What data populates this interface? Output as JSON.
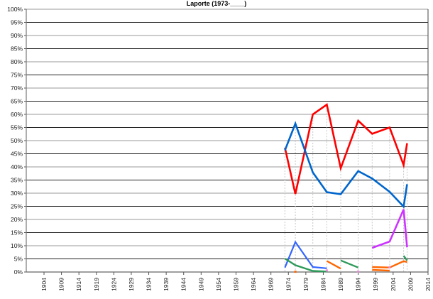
{
  "chart_data": {
    "type": "line",
    "title": "Laporte (1973-____)",
    "xlabel": "",
    "ylabel": "",
    "ylim": [
      0,
      100
    ],
    "xlim": [
      1904,
      2014
    ],
    "grid": true,
    "legend": "none",
    "y_ticks": [
      "0%",
      "5%",
      "10%",
      "15%",
      "20%",
      "25%",
      "30%",
      "35%",
      "40%",
      "45%",
      "50%",
      "55%",
      "60%",
      "65%",
      "70%",
      "75%",
      "80%",
      "85%",
      "90%",
      "95%",
      "100%"
    ],
    "x_ticks": [
      "1904",
      "1909",
      "1914",
      "1919",
      "1924",
      "1929",
      "1934",
      "1939",
      "1944",
      "1949",
      "1954",
      "1959",
      "1964",
      "1969",
      "1974",
      "1979",
      "1984",
      "1989",
      "1994",
      "1999",
      "2004",
      "2009",
      "2014"
    ],
    "election_years": [
      1973,
      1976,
      1981,
      1985,
      1989,
      1994,
      1998,
      2003,
      2007,
      2008
    ],
    "series": [
      {
        "name": "red",
        "color": "#ff0000",
        "width": 2.6,
        "x": [
          1973,
          1976,
          1981,
          1985,
          1989,
          1994,
          1998,
          2003,
          2007,
          2008
        ],
        "values": [
          47.3,
          29.7,
          60.0,
          63.7,
          39.5,
          57.6,
          52.6,
          55.0,
          40.7,
          49.0
        ]
      },
      {
        "name": "blue",
        "color": "#0066cc",
        "width": 2.6,
        "x": [
          1973,
          1976,
          1981,
          1985,
          1989,
          1994,
          1998,
          2003,
          2007,
          2008
        ],
        "values": [
          46.3,
          56.5,
          37.9,
          30.4,
          29.6,
          38.4,
          35.6,
          30.5,
          24.9,
          33.4
        ]
      },
      {
        "name": "light-blue",
        "color": "#3366ff",
        "width": 2.2,
        "x": [
          1973,
          1976,
          1981,
          1985
        ],
        "values": [
          1.7,
          11.4,
          1.9,
          1.4
        ]
      },
      {
        "name": "green-a",
        "color": "#2e9a5a",
        "width": 2.4,
        "x": [
          1973,
          1976,
          1981,
          1985
        ],
        "values": [
          5.1,
          2.6,
          0.4,
          0.2
        ]
      },
      {
        "name": "orange-a",
        "color": "#ff6600",
        "width": 2.4,
        "x": [
          1985,
          1989
        ],
        "values": [
          4.2,
          1.3
        ]
      },
      {
        "name": "green-b",
        "color": "#2e9a5a",
        "width": 2.4,
        "x": [
          1989,
          1994
        ],
        "values": [
          4.4,
          1.7
        ]
      },
      {
        "name": "purple",
        "color": "#cc33ff",
        "width": 2.6,
        "x": [
          1998,
          2003,
          2007,
          2008
        ],
        "values": [
          9.2,
          11.6,
          23.8,
          9.4
        ]
      },
      {
        "name": "green-c",
        "color": "#2e9a5a",
        "width": 2.4,
        "x": [
          2007,
          2008
        ],
        "values": [
          6.2,
          4.4
        ]
      },
      {
        "name": "orange-b",
        "color": "#ff6600",
        "width": 2.4,
        "x": [
          1998,
          2003,
          2007,
          2008
        ],
        "values": [
          1.9,
          1.7,
          4.1,
          3.8
        ]
      },
      {
        "name": "orange-c",
        "color": "#ff6600",
        "width": 2.4,
        "x": [
          1998,
          2003
        ],
        "values": [
          0.8,
          0.5
        ]
      }
    ],
    "points": [
      {
        "name": "orange-dot",
        "color": "#ff6600",
        "x": 1976,
        "value": 0.1
      },
      {
        "name": "pink-dot",
        "color": "#e88ad8",
        "x": 1985,
        "value": 0.6
      },
      {
        "name": "pink-dot",
        "color": "#e88ad8",
        "x": 1994,
        "value": 0.2
      },
      {
        "name": "pink-dot",
        "color": "#e88ad8",
        "x": 2003,
        "value": 1.8
      }
    ]
  }
}
